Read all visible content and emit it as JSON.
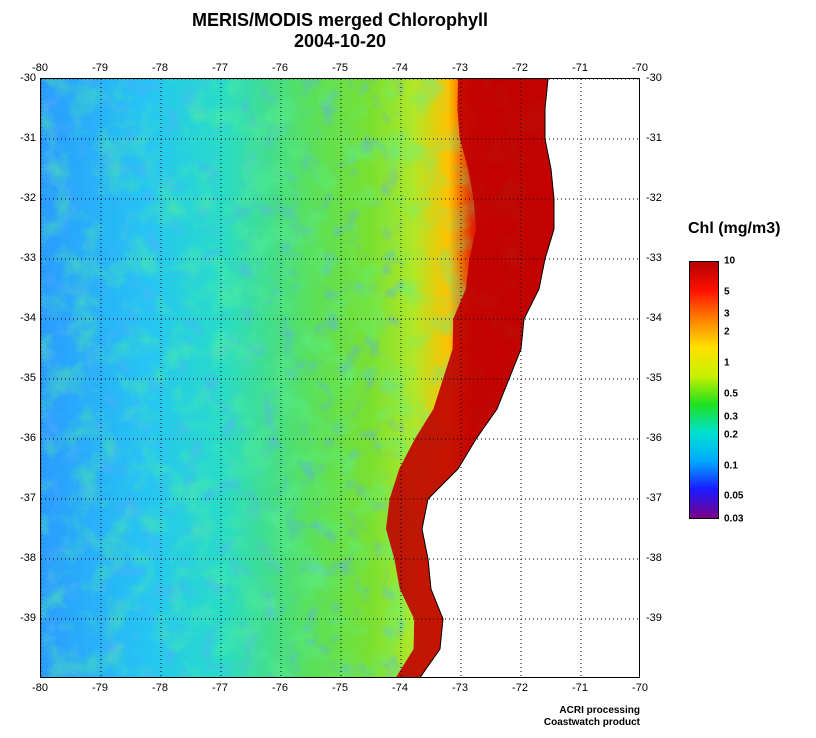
{
  "title": "MERIS/MODIS merged Chlorophyll",
  "date": "2004-10-20",
  "map": {
    "lon_range": [
      -80,
      -70
    ],
    "lat_range": [
      -40,
      -30
    ],
    "lon_ticks": [
      "-80",
      "-79",
      "-78",
      "-77",
      "-76",
      "-75",
      "-74",
      "-73",
      "-72",
      "-71",
      "-70"
    ],
    "lat_ticks": [
      "-30",
      "-31",
      "-32",
      "-33",
      "-34",
      "-35",
      "-36",
      "-37",
      "-38",
      "-39"
    ],
    "gridlines": true,
    "land_color": "#ffffff",
    "coastline_lon_by_lat": [
      [
        -30,
        -71.55
      ],
      [
        -30.5,
        -71.6
      ],
      [
        -31,
        -71.6
      ],
      [
        -31.5,
        -71.5
      ],
      [
        -32,
        -71.45
      ],
      [
        -32.5,
        -71.45
      ],
      [
        -33,
        -71.6
      ],
      [
        -33.5,
        -71.7
      ],
      [
        -34,
        -71.95
      ],
      [
        -34.5,
        -72.0
      ],
      [
        -35,
        -72.2
      ],
      [
        -35.5,
        -72.4
      ],
      [
        -36,
        -72.75
      ],
      [
        -36.5,
        -73.05
      ],
      [
        -37,
        -73.55
      ],
      [
        -37.5,
        -73.65
      ],
      [
        -38,
        -73.55
      ],
      [
        -38.5,
        -73.5
      ],
      [
        -39,
        -73.3
      ],
      [
        -39.5,
        -73.35
      ],
      [
        -40,
        -73.7
      ]
    ]
  },
  "legend": {
    "title": "Chl (mg/m3)",
    "labels": [
      "10",
      "5",
      "3",
      "2",
      "1",
      "0.5",
      "0.3",
      "0.2",
      "0.1",
      "0.05",
      "0.03"
    ],
    "values": [
      10,
      5,
      3,
      2,
      1,
      0.5,
      0.3,
      0.2,
      0.1,
      0.05,
      0.03
    ],
    "scale": "log",
    "range": [
      0.03,
      10
    ],
    "colors": [
      "#7b0088",
      "#1a1aff",
      "#00aaff",
      "#00e0d0",
      "#20e020",
      "#c8f000",
      "#ffe000",
      "#ff8000",
      "#ff1000",
      "#b40000"
    ]
  },
  "credits": {
    "line1": "ACRI processing",
    "line2": "Coastwatch product"
  }
}
